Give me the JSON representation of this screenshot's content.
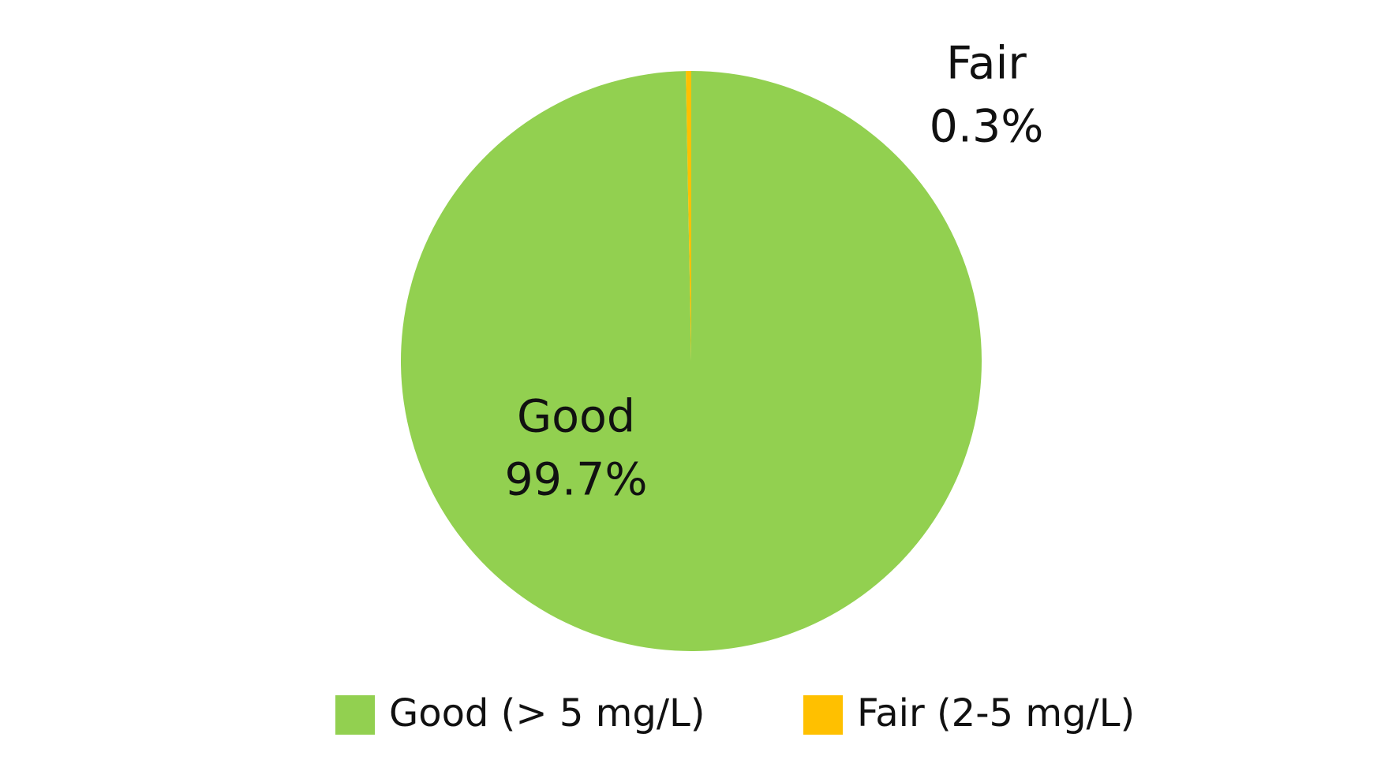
{
  "chart_data": {
    "type": "pie",
    "categories": [
      "Good",
      "Fair"
    ],
    "legend": [
      "Good (> 5 mg/L)",
      "Fair (2-5 mg/L)"
    ],
    "values": [
      99.7,
      0.3
    ],
    "value_labels": [
      "99.7%",
      "0.3%"
    ],
    "colors": [
      "#92d050",
      "#ffc000"
    ]
  }
}
